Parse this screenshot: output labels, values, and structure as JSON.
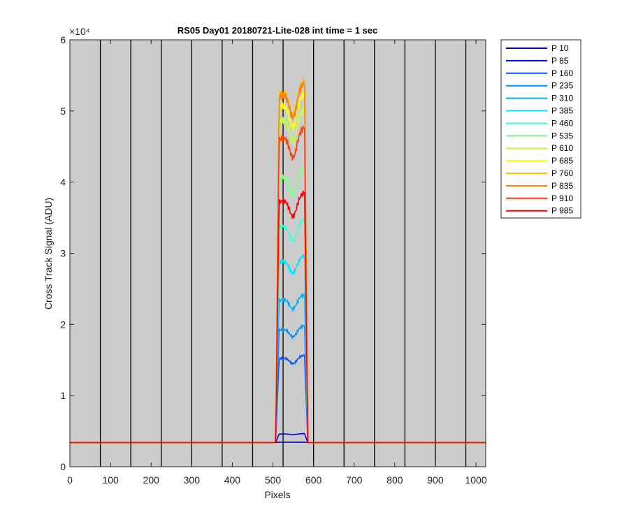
{
  "chart_data": {
    "type": "line",
    "title": "RS05 Day01 20180721-Lite-028 int time = 1 sec",
    "xlabel": "Pixels",
    "ylabel": "Cross Track Signal (ADU)",
    "y_exponent_label": "×10⁴",
    "xlim": [
      0,
      1024
    ],
    "ylim": [
      0,
      60000
    ],
    "x_ticks": [
      0,
      100,
      200,
      300,
      400,
      500,
      600,
      700,
      800,
      900,
      1000
    ],
    "y_ticks": [
      0,
      10000,
      20000,
      30000,
      40000,
      50000,
      60000
    ],
    "y_tick_labels": [
      "0",
      "1",
      "2",
      "3",
      "4",
      "5",
      "6"
    ],
    "vertical_lines_x": [
      75,
      150,
      225,
      300,
      375,
      450,
      525,
      600,
      675,
      750,
      825,
      900,
      975
    ],
    "plot_background": "#cccccc",
    "baseline": 3400,
    "plateau_start": 515,
    "plateau_end": 578,
    "legend_location": "outside-right",
    "series": [
      {
        "name": "P 10",
        "color": "#0000aa",
        "plateau": 3450
      },
      {
        "name": "P 85",
        "color": "#0000ff",
        "plateau": 4600
      },
      {
        "name": "P 160",
        "color": "#0050ff",
        "plateau": 15200
      },
      {
        "name": "P 235",
        "color": "#0090ff",
        "plateau": 19200
      },
      {
        "name": "P 310",
        "color": "#00b0ff",
        "plateau": 23400
      },
      {
        "name": "P 385",
        "color": "#00e5ff",
        "plateau": 28700
      },
      {
        "name": "P 460",
        "color": "#40ffd0",
        "plateau": 33600
      },
      {
        "name": "P 535",
        "color": "#80ff80",
        "plateau": 40500
      },
      {
        "name": "P 610",
        "color": "#c0ff40",
        "plateau": 48500
      },
      {
        "name": "P 685",
        "color": "#ffff00",
        "plateau": 50500
      },
      {
        "name": "P 760",
        "color": "#ffbf00",
        "plateau": 52300
      },
      {
        "name": "P 835",
        "color": "#ff7f00",
        "plateau": 52000
      },
      {
        "name": "P 910",
        "color": "#ff3f00",
        "plateau": 46000
      },
      {
        "name": "P 985",
        "color": "#ff0000",
        "plateau": 37200
      }
    ]
  }
}
